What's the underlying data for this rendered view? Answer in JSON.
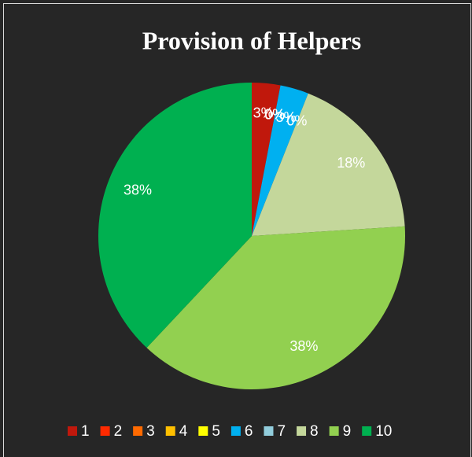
{
  "chart_data": {
    "type": "pie",
    "title": "Provision of Helpers",
    "categories": [
      "1",
      "2",
      "3",
      "4",
      "5",
      "6",
      "7",
      "8",
      "9",
      "10"
    ],
    "values": [
      3,
      0,
      0,
      0,
      0,
      3,
      0,
      18,
      38,
      38
    ],
    "value_labels": [
      "3%",
      "0%",
      "0%",
      "0%",
      "0%",
      "3%",
      "0%",
      "18%",
      "38%",
      "38%"
    ],
    "colors": [
      "#c0180c",
      "#ff2a00",
      "#ff6a00",
      "#ffc000",
      "#ffff00",
      "#00b0f0",
      "#92cddc",
      "#c4d79b",
      "#92d050",
      "#00b050"
    ],
    "legend": "bottom"
  }
}
